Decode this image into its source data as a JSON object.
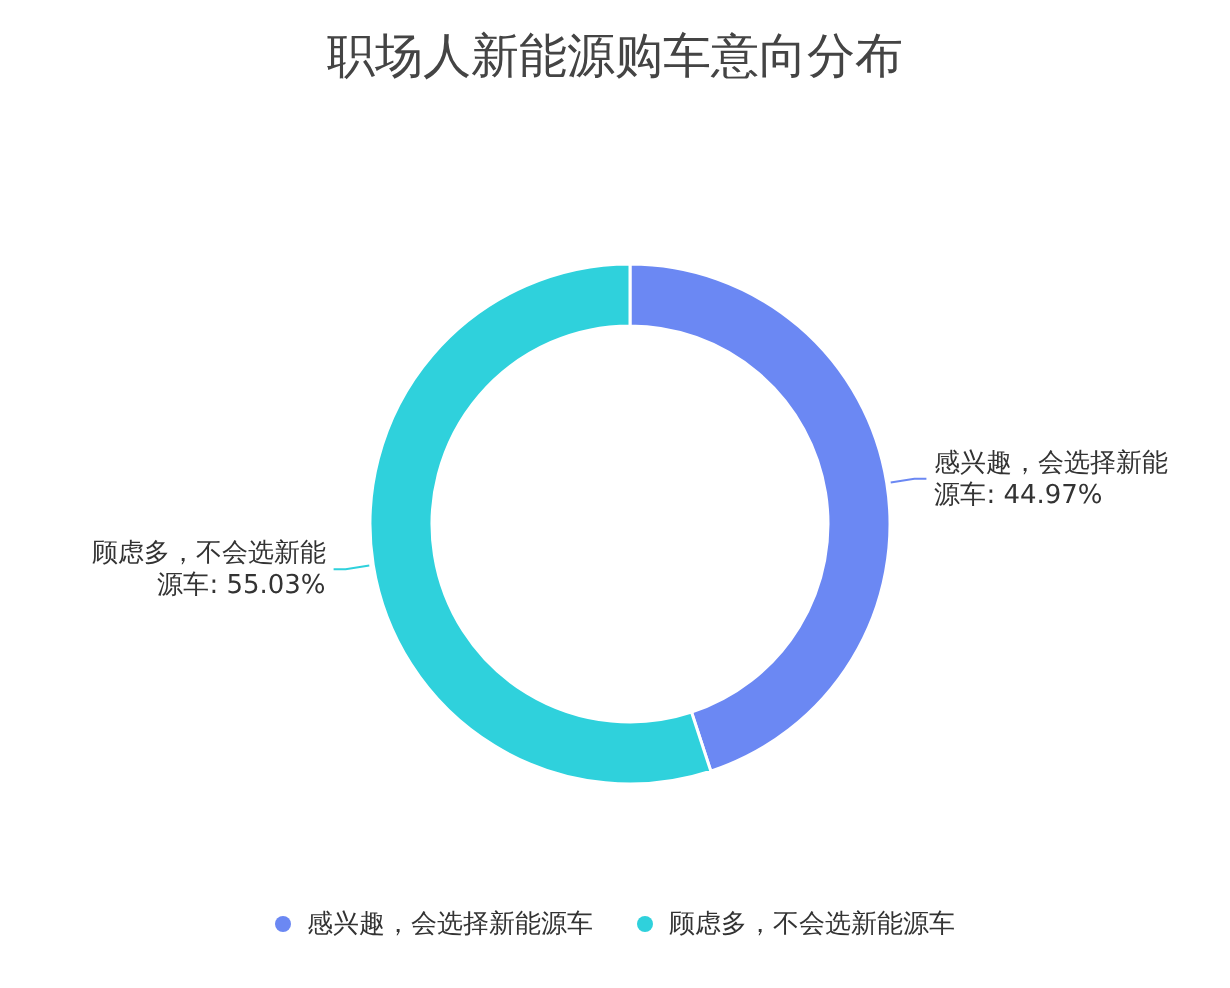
{
  "chart_data": {
    "type": "donut",
    "title": "职场人新能源购车意向分布",
    "categories": [
      "感兴趣，会选择新能源车",
      "顾虑多，不会选新能源车"
    ],
    "values": [
      44.97,
      55.03
    ],
    "colors": [
      "#6b88f3",
      "#2fd1dc"
    ],
    "value_labels": [
      "感兴趣，会选择新能源车: 44.97%",
      "顾虑多，不会选新能源车: 55.03%"
    ],
    "legend": "bottom"
  }
}
